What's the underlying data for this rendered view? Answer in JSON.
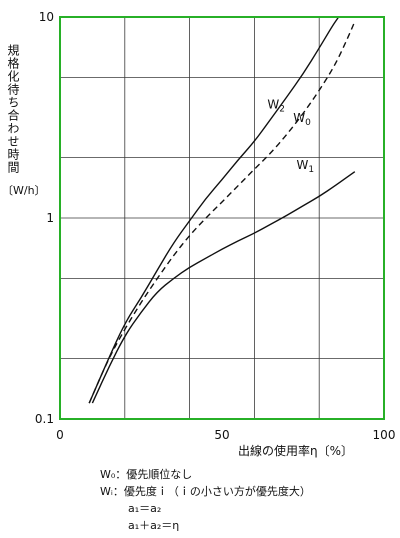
{
  "chart_data": {
    "type": "line",
    "ylabel": "規格化待ち合わせ時間",
    "yunit": "〔W/h〕",
    "xlabel": "出線の使用率η〔%〕",
    "x_scale": "linear",
    "y_scale": "log",
    "xlim": [
      0,
      100
    ],
    "ylim": [
      0.1,
      10
    ],
    "x_ticks": [
      "0",
      "50",
      "100"
    ],
    "y_ticks": [
      "0.1",
      "1",
      "10"
    ],
    "grid": true,
    "frame_color": "#27b027",
    "series": [
      {
        "name": "W2",
        "label": "W",
        "label_sub": "2",
        "style": "solid",
        "color": "#111111",
        "points": [
          [
            9,
            0.12
          ],
          [
            15,
            0.2
          ],
          [
            20,
            0.3
          ],
          [
            25,
            0.4
          ],
          [
            30,
            0.55
          ],
          [
            35,
            0.75
          ],
          [
            40,
            0.97
          ],
          [
            45,
            1.25
          ],
          [
            50,
            1.55
          ],
          [
            55,
            1.95
          ],
          [
            60,
            2.4
          ],
          [
            65,
            3.1
          ],
          [
            70,
            4.0
          ],
          [
            75,
            5.2
          ],
          [
            80,
            7.0
          ],
          [
            84,
            9.0
          ],
          [
            86,
            10.0
          ]
        ]
      },
      {
        "name": "W0",
        "label": "W",
        "label_sub": "0",
        "style": "dashed",
        "color": "#111111",
        "points": [
          [
            9,
            0.12
          ],
          [
            15,
            0.2
          ],
          [
            20,
            0.28
          ],
          [
            25,
            0.38
          ],
          [
            30,
            0.5
          ],
          [
            35,
            0.65
          ],
          [
            40,
            0.82
          ],
          [
            45,
            1.0
          ],
          [
            50,
            1.2
          ],
          [
            55,
            1.45
          ],
          [
            60,
            1.75
          ],
          [
            65,
            2.1
          ],
          [
            70,
            2.6
          ],
          [
            75,
            3.3
          ],
          [
            80,
            4.3
          ],
          [
            85,
            5.8
          ],
          [
            89,
            8.0
          ],
          [
            91,
            9.5
          ]
        ]
      },
      {
        "name": "W1",
        "label": "W",
        "label_sub": "1",
        "style": "solid",
        "color": "#111111",
        "points": [
          [
            10,
            0.12
          ],
          [
            15,
            0.18
          ],
          [
            20,
            0.26
          ],
          [
            25,
            0.34
          ],
          [
            30,
            0.43
          ],
          [
            35,
            0.5
          ],
          [
            40,
            0.57
          ],
          [
            45,
            0.63
          ],
          [
            50,
            0.7
          ],
          [
            55,
            0.77
          ],
          [
            60,
            0.84
          ],
          [
            65,
            0.93
          ],
          [
            70,
            1.03
          ],
          [
            75,
            1.15
          ],
          [
            80,
            1.28
          ],
          [
            85,
            1.45
          ],
          [
            91,
            1.7
          ]
        ]
      }
    ]
  },
  "notes": {
    "line1": "W₀：優先順位なし",
    "line2": "Wᵢ：優先度ｉ（ｉの小さい方が優先度大）",
    "line3": "a₁＝a₂",
    "line4": "a₁＋a₂＝η"
  }
}
